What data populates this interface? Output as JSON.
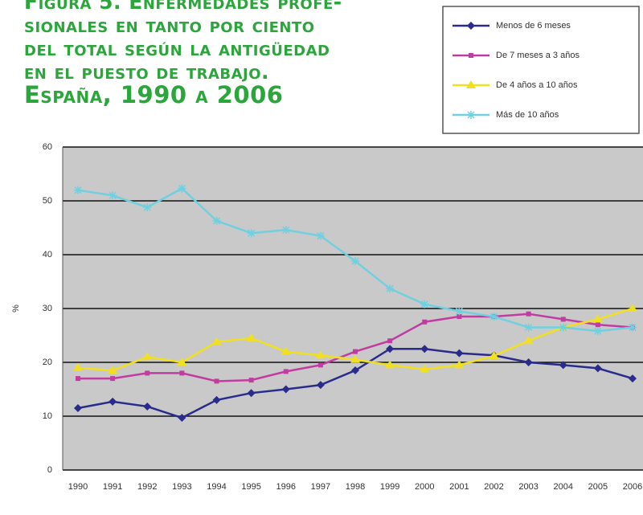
{
  "chart_data": {
    "type": "line",
    "title_lines": [
      "Figura 5. Enfermedades profe-",
      "sionales en tanto por ciento",
      "del total según la antigüedad",
      "en el puesto de trabajo.",
      "España, 1990 a 2006"
    ],
    "y_label": "%",
    "categories": [
      "1990",
      "1991",
      "1992",
      "1993",
      "1994",
      "1995",
      "1996",
      "1997",
      "1998",
      "1999",
      "2000",
      "2001",
      "2002",
      "2003",
      "2004",
      "2005",
      "2006"
    ],
    "series": [
      {
        "name": "Menos de 6 meses",
        "color": "#2b2b8c",
        "marker": "diamond",
        "values": [
          11.5,
          12.7,
          11.8,
          9.7,
          13,
          14.3,
          15,
          15.8,
          18.5,
          22.5,
          22.5,
          21.7,
          21.3,
          20,
          19.5,
          18.9,
          17
        ]
      },
      {
        "name": "De 7 meses a 3 años",
        "color": "#c03ca0",
        "marker": "square",
        "values": [
          17,
          17,
          18,
          18,
          16.5,
          16.7,
          18.3,
          19.5,
          22,
          24,
          27.5,
          28.5,
          28.5,
          29,
          28,
          27,
          26.5
        ]
      },
      {
        "name": "De 4 años a 10 años",
        "color": "#f0e020",
        "marker": "triangle",
        "values": [
          19,
          18.5,
          21,
          20,
          23.8,
          24.5,
          22,
          21.3,
          20.5,
          19.5,
          18.7,
          19.5,
          21.2,
          24,
          26.5,
          28,
          30
        ]
      },
      {
        "name": "Más de 10 años",
        "color": "#70d0e0",
        "marker": "star",
        "values": [
          52,
          51,
          48.8,
          52.3,
          46.3,
          44,
          44.6,
          43.5,
          38.8,
          33.7,
          30.8,
          29.5,
          28.5,
          26.5,
          26.5,
          25.8,
          26.5
        ]
      }
    ],
    "ylim": [
      0,
      60
    ],
    "yticks": [
      0,
      10,
      20,
      30,
      40,
      50,
      60
    ],
    "grid": true,
    "legend": "top-right"
  }
}
